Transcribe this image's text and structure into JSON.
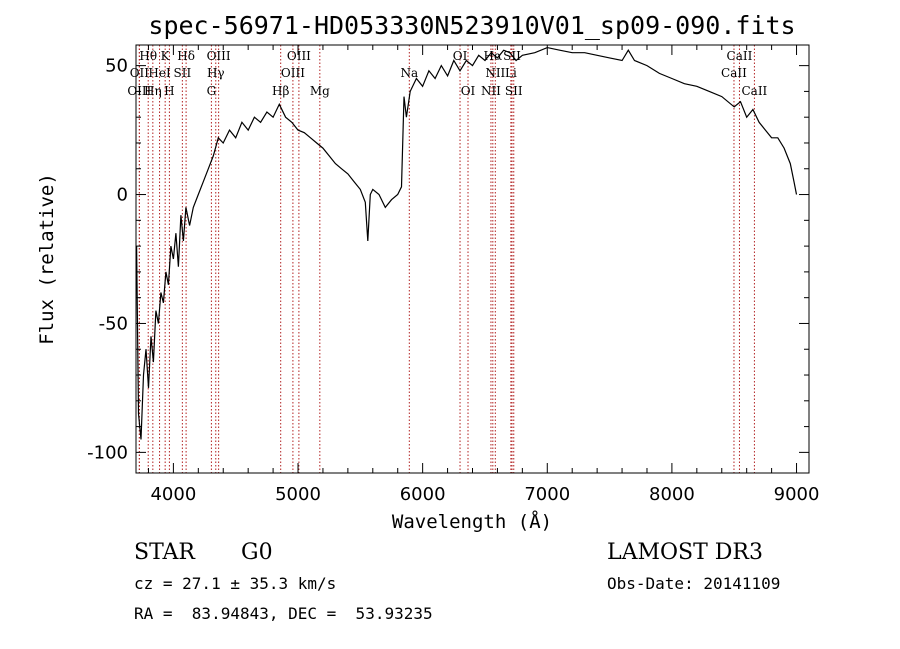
{
  "chart_data": {
    "type": "line",
    "title": "spec-56971-HD053330N523910V01_sp09-090.fits",
    "xlabel": "Wavelength (Å)",
    "ylabel": "Flux (relative)",
    "xlim": [
      3700,
      9100
    ],
    "ylim": [
      -108,
      58
    ],
    "xticks": [
      4000,
      5000,
      6000,
      7000,
      8000,
      9000
    ],
    "yticks": [
      -100,
      -50,
      0,
      50
    ],
    "series": [
      {
        "name": "flux",
        "x": [
          3705,
          3720,
          3740,
          3760,
          3780,
          3800,
          3820,
          3840,
          3860,
          3880,
          3900,
          3920,
          3940,
          3960,
          3980,
          4000,
          4020,
          4040,
          4060,
          4080,
          4100,
          4130,
          4160,
          4200,
          4240,
          4280,
          4320,
          4360,
          4400,
          4450,
          4500,
          4550,
          4600,
          4650,
          4700,
          4750,
          4800,
          4850,
          4900,
          4950,
          5000,
          5050,
          5100,
          5150,
          5200,
          5250,
          5300,
          5350,
          5400,
          5450,
          5500,
          5540,
          5560,
          5580,
          5600,
          5650,
          5700,
          5750,
          5800,
          5830,
          5850,
          5870,
          5900,
          5950,
          6000,
          6050,
          6100,
          6150,
          6200,
          6250,
          6300,
          6350,
          6400,
          6450,
          6500,
          6550,
          6600,
          6650,
          6700,
          6750,
          6800,
          6900,
          7000,
          7100,
          7200,
          7300,
          7400,
          7500,
          7600,
          7650,
          7700,
          7800,
          7900,
          8000,
          8100,
          8200,
          8300,
          8400,
          8500,
          8550,
          8600,
          8650,
          8700,
          8750,
          8800,
          8850,
          8900,
          8950,
          8980,
          9000
        ],
        "values": [
          -20,
          -85,
          -95,
          -70,
          -60,
          -75,
          -55,
          -65,
          -45,
          -50,
          -38,
          -42,
          -30,
          -35,
          -20,
          -25,
          -15,
          -28,
          -8,
          -18,
          -5,
          -12,
          -5,
          0,
          5,
          10,
          15,
          22,
          20,
          25,
          22,
          28,
          25,
          30,
          28,
          32,
          30,
          35,
          30,
          28,
          25,
          24,
          22,
          20,
          18,
          15,
          12,
          10,
          8,
          5,
          2,
          -3,
          -18,
          0,
          2,
          0,
          -5,
          -2,
          0,
          3,
          38,
          30,
          40,
          45,
          42,
          48,
          45,
          50,
          46,
          52,
          48,
          52,
          50,
          54,
          52,
          55,
          53,
          56,
          55,
          52,
          54,
          55,
          57,
          56,
          55,
          55,
          54,
          53,
          52,
          56,
          52,
          50,
          47,
          45,
          43,
          42,
          40,
          38,
          34,
          36,
          30,
          33,
          28,
          25,
          22,
          22,
          18,
          12,
          5,
          0
        ]
      }
    ],
    "spectral_lines": [
      {
        "label": "Hθ",
        "wavelength": 3798,
        "row": 1
      },
      {
        "label": "OII",
        "wavelength": 3727,
        "row": 2
      },
      {
        "label": "OIII",
        "wavelength": 3727,
        "row": 3
      },
      {
        "label": "K",
        "wavelength": 3934,
        "row": 1
      },
      {
        "label": "HeI",
        "wavelength": 3889,
        "row": 2
      },
      {
        "label": "Hη",
        "wavelength": 3835,
        "row": 3
      },
      {
        "label": "SII",
        "wavelength": 4072,
        "row": 2
      },
      {
        "label": "H",
        "wavelength": 3968,
        "row": 3
      },
      {
        "label": "Hδ",
        "wavelength": 4102,
        "row": 1
      },
      {
        "label": "OIII",
        "wavelength": 4363,
        "row": 1
      },
      {
        "label": "Hγ",
        "wavelength": 4340,
        "row": 2
      },
      {
        "label": "G",
        "wavelength": 4305,
        "row": 3
      },
      {
        "label": "OIII",
        "wavelength": 5007,
        "row": 1
      },
      {
        "label": "OIII",
        "wavelength": 4959,
        "row": 2
      },
      {
        "label": "Hβ",
        "wavelength": 4861,
        "row": 3
      },
      {
        "label": "Mg",
        "wavelength": 5175,
        "row": 3
      },
      {
        "label": "Na",
        "wavelength": 5893,
        "row": 2
      },
      {
        "label": "OI",
        "wavelength": 6300,
        "row": 1
      },
      {
        "label": "OI",
        "wavelength": 6364,
        "row": 3
      },
      {
        "label": "Hα",
        "wavelength": 6563,
        "row": 1
      },
      {
        "label": "SII",
        "wavelength": 6717,
        "row": 1
      },
      {
        "label": "NII",
        "wavelength": 6583,
        "row": 2
      },
      {
        "label": "Li",
        "wavelength": 6708,
        "row": 2
      },
      {
        "label": "NII",
        "wavelength": 6548,
        "row": 3
      },
      {
        "label": "SII",
        "wavelength": 6731,
        "row": 3
      },
      {
        "label": "CaII",
        "wavelength": 8542,
        "row": 1
      },
      {
        "label": "CaII",
        "wavelength": 8498,
        "row": 2
      },
      {
        "label": "CaII",
        "wavelength": 8662,
        "row": 3
      }
    ]
  },
  "info": {
    "object_class": "STAR",
    "subclass": "G0",
    "survey": "LAMOST DR3",
    "cz": "cz = 27.1 ± 35.3 km/s",
    "obs_date": "Obs-Date: 20141109",
    "coords": "RA =  83.94843, DEC =  53.93235"
  },
  "colors": {
    "line": "#000000",
    "marker": "#b22222"
  }
}
